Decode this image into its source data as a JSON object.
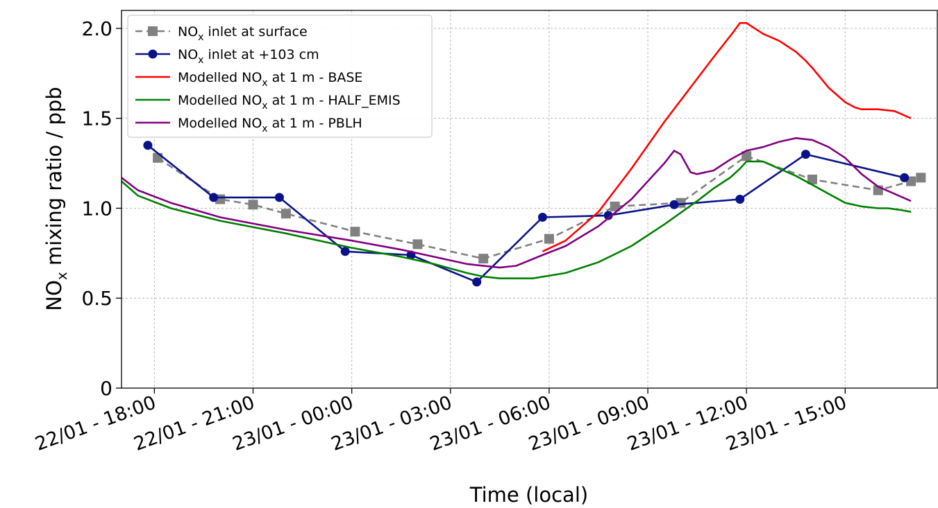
{
  "chart_data": {
    "type": "line",
    "title": "",
    "xlabel": "Time (local)",
    "ylabel": {
      "pre": "NO",
      "sub": "x",
      "post": " mixing ratio / ppb"
    },
    "x_unit": "hours",
    "xlim": [
      17.0,
      41.8
    ],
    "ylim": [
      0,
      2.1
    ],
    "yticks": [
      {
        "value": 0,
        "label": "0"
      },
      {
        "value": 0.5,
        "label": "0.5"
      },
      {
        "value": 1.0,
        "label": "1.0"
      },
      {
        "value": 1.5,
        "label": "1.5"
      },
      {
        "value": 2.0,
        "label": "2.0"
      }
    ],
    "xticks": [
      {
        "value": 18,
        "label": "22/01 - 18:00"
      },
      {
        "value": 21,
        "label": "22/01 - 21:00"
      },
      {
        "value": 24,
        "label": "23/01 - 00:00"
      },
      {
        "value": 27,
        "label": "23/01 - 03:00"
      },
      {
        "value": 30,
        "label": "23/01 - 06:00"
      },
      {
        "value": 33,
        "label": "23/01 - 09:00"
      },
      {
        "value": 36,
        "label": "23/01 - 12:00"
      },
      {
        "value": 39,
        "label": "23/01 - 15:00"
      }
    ],
    "grid": true,
    "legend_position": "top-left",
    "series": [
      {
        "legend": {
          "pre": "NO",
          "sub": "x",
          "post": " inlet at surface"
        },
        "color": "#808080",
        "style": "dashed",
        "marker": "square",
        "x": [
          18.1,
          20.0,
          21.0,
          22.0,
          24.1,
          26.0,
          28.0,
          30.0,
          32.0,
          34.0,
          36.0,
          38.0,
          40.0,
          41.0,
          41.3
        ],
        "y": [
          1.28,
          1.05,
          1.02,
          0.97,
          0.87,
          0.8,
          0.72,
          0.83,
          1.01,
          1.03,
          1.29,
          1.16,
          1.1,
          1.15,
          1.17
        ]
      },
      {
        "legend": {
          "pre": "NO",
          "sub": "x",
          "post": " inlet at +103 cm"
        },
        "color": "#0a128a",
        "style": "solid",
        "marker": "circle",
        "x": [
          17.8,
          19.8,
          21.8,
          23.8,
          25.8,
          27.8,
          29.8,
          31.8,
          33.8,
          35.8,
          37.8,
          40.8
        ],
        "y": [
          1.35,
          1.06,
          1.06,
          0.76,
          0.74,
          0.59,
          0.95,
          0.96,
          1.02,
          1.05,
          1.3,
          1.17
        ]
      },
      {
        "legend": {
          "pre": "Modelled NO",
          "sub": "x",
          "post": " at 1 m - BASE"
        },
        "color": "#ff0000",
        "style": "solid",
        "marker": "none",
        "x": [
          29.8,
          30.5,
          31.5,
          32.5,
          33.0,
          33.5,
          34.0,
          34.5,
          35.0,
          35.6,
          35.8,
          36.0,
          36.5,
          37.0,
          37.5,
          37.8,
          38.0,
          38.5,
          39.0,
          39.3,
          39.5,
          40.0,
          40.5,
          41.0
        ],
        "y": [
          0.76,
          0.82,
          0.98,
          1.22,
          1.35,
          1.48,
          1.6,
          1.72,
          1.84,
          1.98,
          2.03,
          2.03,
          1.97,
          1.93,
          1.87,
          1.82,
          1.78,
          1.67,
          1.59,
          1.56,
          1.55,
          1.55,
          1.54,
          1.5
        ]
      },
      {
        "legend": {
          "pre": "Modelled NO",
          "sub": "x",
          "post": " at 1 m - HALF_EMIS"
        },
        "color": "#008000",
        "style": "solid",
        "marker": "none",
        "x": [
          17.0,
          17.5,
          18.5,
          20.0,
          22.0,
          24.0,
          25.5,
          26.5,
          27.5,
          28.0,
          28.5,
          29.5,
          30.5,
          31.5,
          32.5,
          33.5,
          34.5,
          35.0,
          35.5,
          35.8,
          36.0,
          36.5,
          37.0,
          37.5,
          38.0,
          38.5,
          39.0,
          39.5,
          40.0,
          40.3,
          40.7,
          41.0
        ],
        "y": [
          1.15,
          1.07,
          1.0,
          0.93,
          0.86,
          0.78,
          0.73,
          0.69,
          0.64,
          0.62,
          0.61,
          0.61,
          0.64,
          0.7,
          0.79,
          0.91,
          1.04,
          1.11,
          1.17,
          1.22,
          1.26,
          1.26,
          1.22,
          1.18,
          1.13,
          1.08,
          1.03,
          1.01,
          1.0,
          1.0,
          0.99,
          0.98
        ]
      },
      {
        "legend": {
          "pre": "Modelled NO",
          "sub": "x",
          "post": " at 1 m - PBLH"
        },
        "color": "#800080",
        "style": "solid",
        "marker": "none",
        "x": [
          17.0,
          17.5,
          18.5,
          20.0,
          22.0,
          24.0,
          25.5,
          26.5,
          27.5,
          28.5,
          29.0,
          29.8,
          30.5,
          31.5,
          32.5,
          33.0,
          33.5,
          33.8,
          34.0,
          34.3,
          34.5,
          35.0,
          35.5,
          36.0,
          36.5,
          37.0,
          37.5,
          38.0,
          38.5,
          39.0,
          39.5,
          40.0,
          40.5,
          41.0
        ],
        "y": [
          1.17,
          1.1,
          1.03,
          0.95,
          0.88,
          0.82,
          0.77,
          0.73,
          0.69,
          0.67,
          0.68,
          0.74,
          0.79,
          0.9,
          1.05,
          1.15,
          1.25,
          1.32,
          1.3,
          1.2,
          1.19,
          1.21,
          1.27,
          1.32,
          1.34,
          1.37,
          1.39,
          1.38,
          1.34,
          1.28,
          1.19,
          1.12,
          1.08,
          1.04
        ]
      }
    ]
  }
}
